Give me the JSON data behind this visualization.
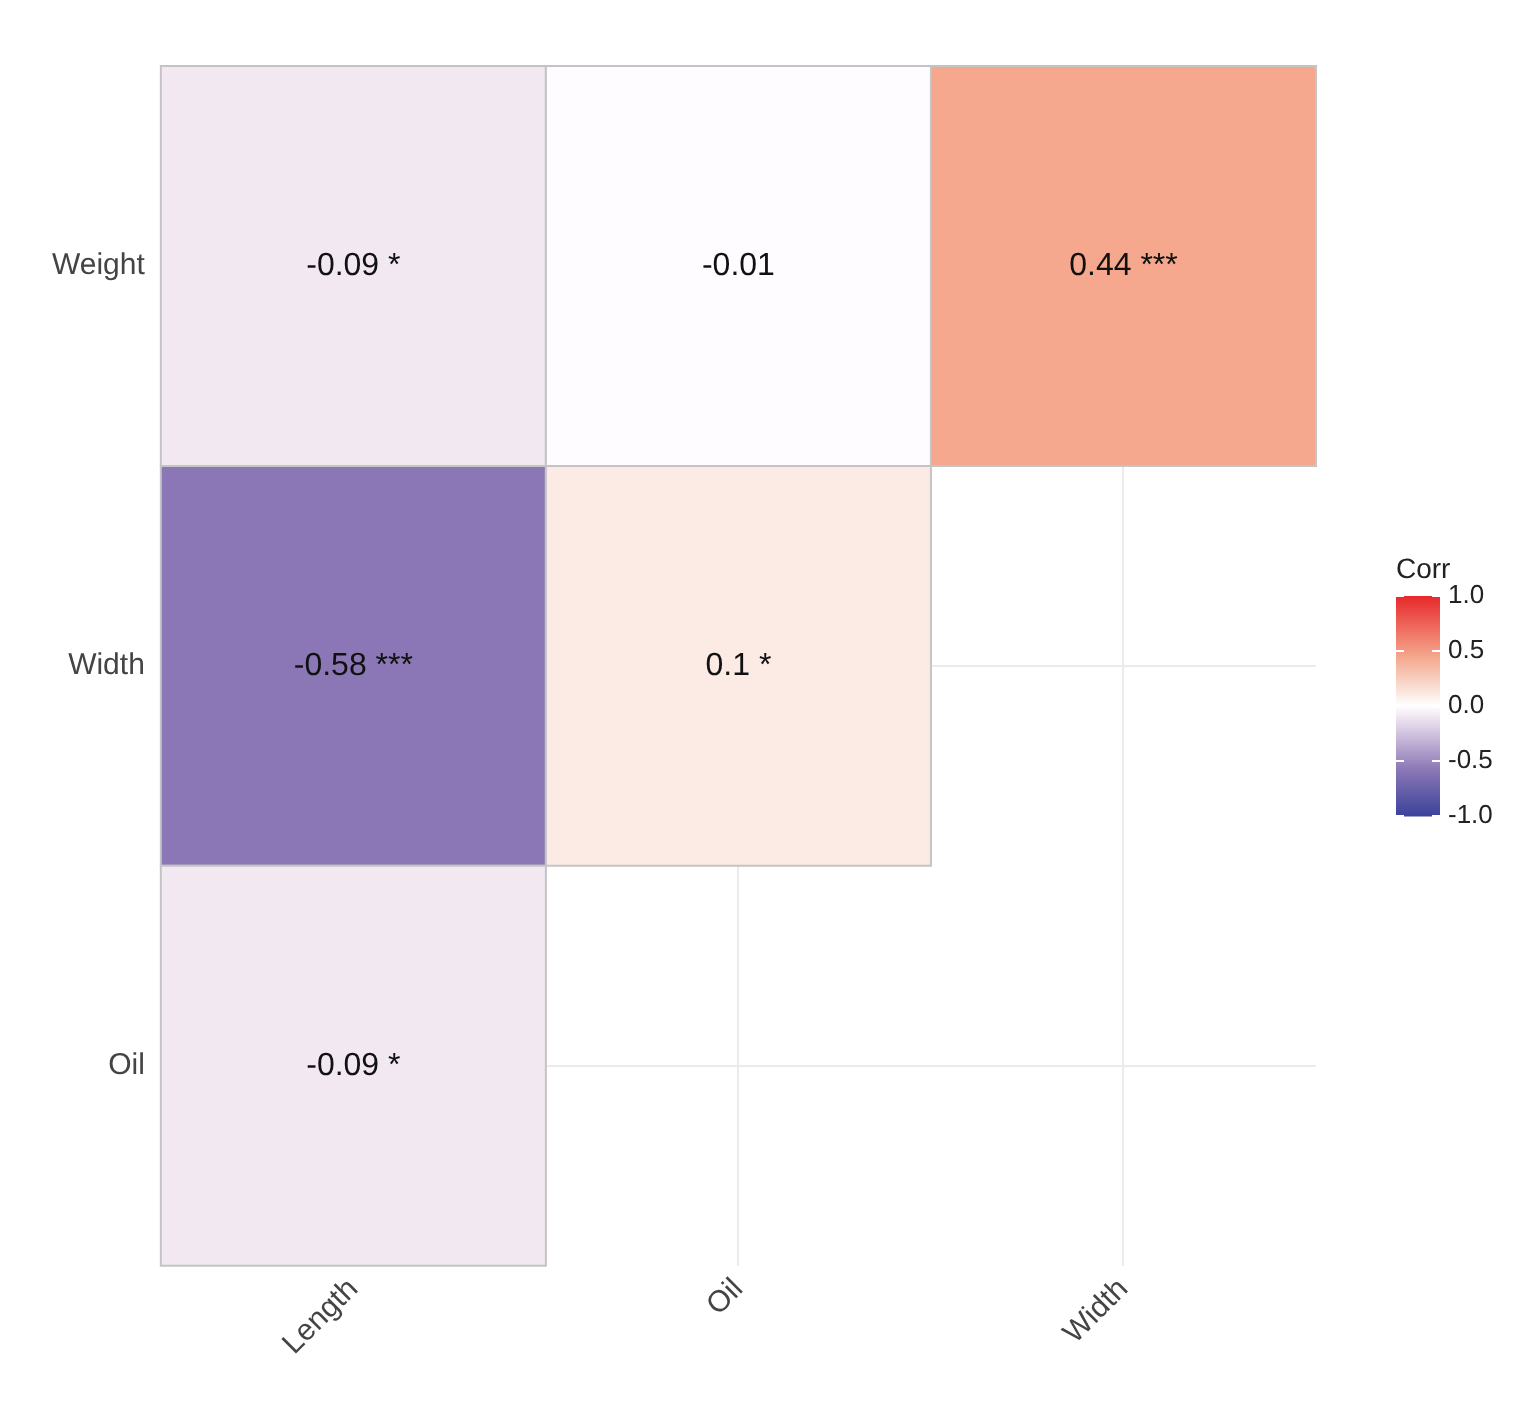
{
  "chart_data": {
    "type": "heatmap",
    "categories": [
      "Length",
      "Oil",
      "Width"
    ],
    "y_categories": [
      "Weight",
      "Width",
      "Oil"
    ],
    "cells": [
      [
        -0.09,
        -0.01,
        0.44
      ],
      [
        -0.58,
        0.1,
        null
      ],
      [
        -0.09,
        null,
        null
      ]
    ],
    "cell_labels": [
      [
        "-0.09 *",
        "-0.01",
        "0.44 ***"
      ],
      [
        "-0.58 ***",
        "0.1 *",
        null
      ],
      [
        "-0.09 *",
        null,
        null
      ]
    ],
    "clim": [
      -1,
      1
    ],
    "cticks": [
      {
        "value": 1,
        "label": "1.0"
      },
      {
        "value": 0.5,
        "label": "0.5"
      },
      {
        "value": 0,
        "label": "0.0"
      },
      {
        "value": -0.5,
        "label": "-0.5"
      },
      {
        "value": -1,
        "label": "-1.0"
      }
    ],
    "legend_title": "Corr",
    "grid": true
  }
}
